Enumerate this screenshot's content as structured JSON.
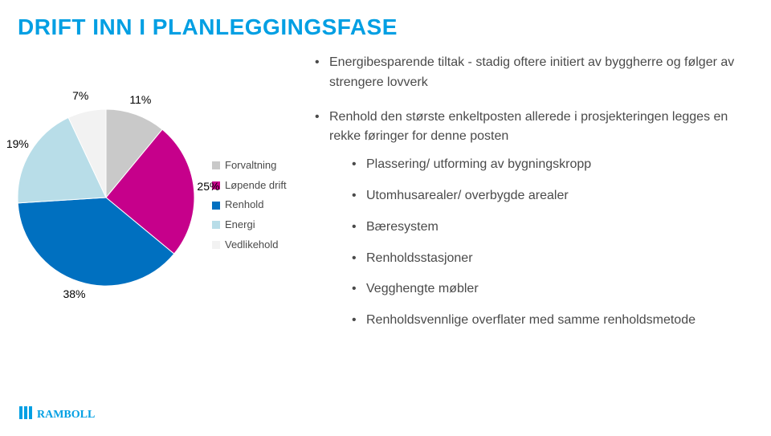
{
  "title": "DRIFT INN I PLANLEGGINGSFASE",
  "text": {
    "b1": "Energibesparende tiltak - stadig oftere initiert av byggherre og følger av strengere lovverk",
    "b2": "Renhold den største enkeltposten allerede i prosjekteringen legges en rekke føringer for denne posten",
    "s1": "Plassering/ utforming av bygningskropp",
    "s2": "Utomhusarealer/ overbygde arealer",
    "s3": "Bæresystem",
    "s4": "Renholdsstasjoner",
    "s5": "Vegghengte møbler",
    "s6": "Renholdsvennlige overflater med samme renholdsmetode"
  },
  "chart": {
    "type": "pie",
    "size": 220,
    "background_color": "#ffffff",
    "label_color": "#000000",
    "label_fontsize": 14,
    "start_angle_deg": -90,
    "categories": [
      "Forvaltning",
      "Løpende drift",
      "Renhold",
      "Energi",
      "Vedlikehold"
    ],
    "values": [
      11,
      25,
      38,
      19,
      7
    ],
    "colors": [
      "#c9c9c9",
      "#c6008b",
      "#0070c0",
      "#b8dde8",
      "#f2f2f2"
    ],
    "legend_square_size": 10,
    "legend_font_size": 13,
    "pct_labels": [
      "11%",
      "25%",
      "38%",
      "19%",
      "7%"
    ]
  },
  "logo": "RAMBOLL"
}
